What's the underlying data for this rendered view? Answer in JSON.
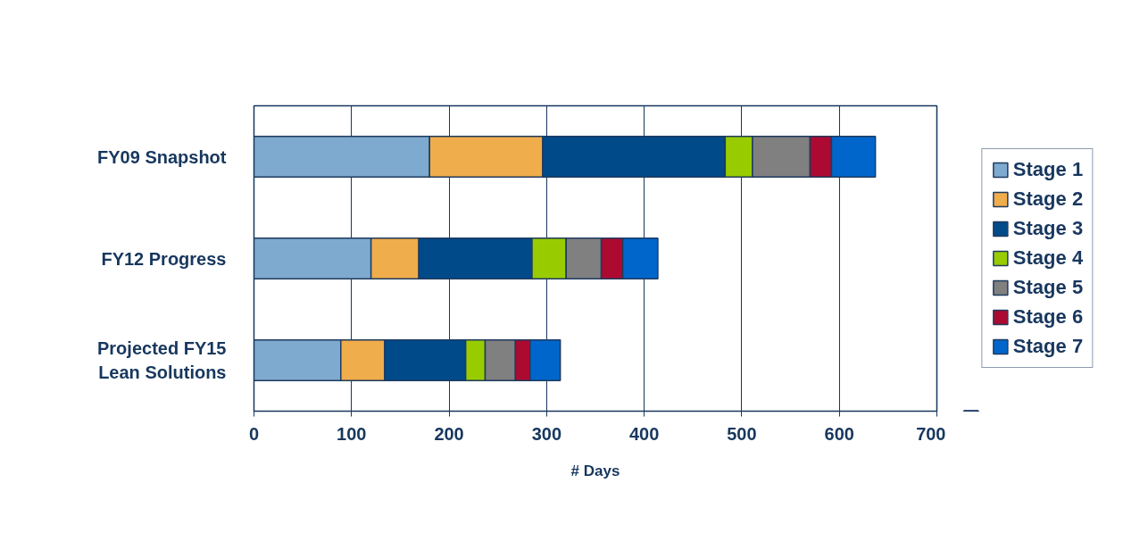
{
  "chart_data": {
    "type": "bar",
    "orientation": "horizontal",
    "stacked": true,
    "categories": [
      "FY09 Snapshot",
      "FY12 Progress",
      "Projected FY15\nLean Solutions"
    ],
    "series": [
      {
        "name": "Stage 1",
        "color": "#7faacf",
        "values": [
          180,
          120,
          89
        ]
      },
      {
        "name": "Stage 2",
        "color": "#f0ad4b",
        "values": [
          116,
          49,
          45
        ]
      },
      {
        "name": "Stage 3",
        "color": "#004a8a",
        "values": [
          187,
          116,
          83
        ]
      },
      {
        "name": "Stage 4",
        "color": "#99cc00",
        "values": [
          28,
          35,
          20
        ]
      },
      {
        "name": "Stage 5",
        "color": "#808080",
        "values": [
          59,
          36,
          31
        ]
      },
      {
        "name": "Stage 6",
        "color": "#ad0a31",
        "values": [
          22,
          22,
          15
        ]
      },
      {
        "name": "Stage 7",
        "color": "#0066cc",
        "values": [
          45,
          36,
          31
        ]
      }
    ],
    "xlabel": "# Days",
    "xlim": [
      0,
      700
    ],
    "xticks": [
      0,
      100,
      200,
      300,
      400,
      500,
      600,
      700
    ],
    "grid": "x",
    "legend": "right"
  }
}
